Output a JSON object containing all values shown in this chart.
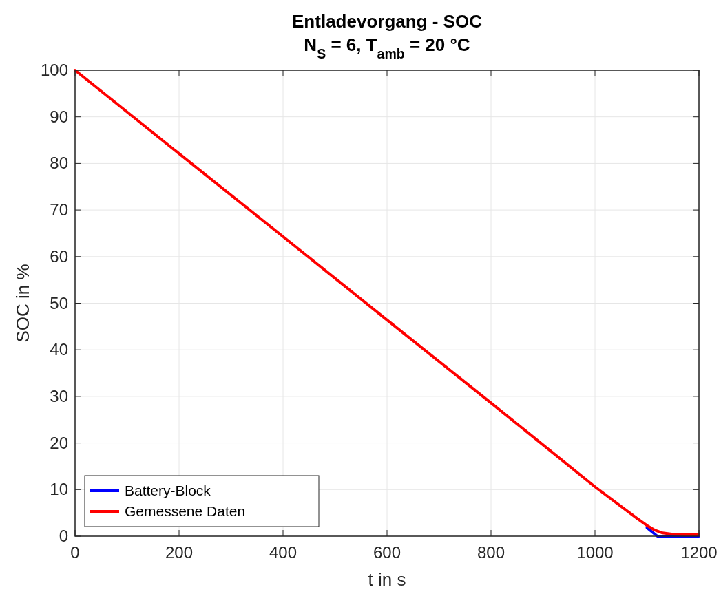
{
  "chart_data": {
    "type": "line",
    "title": "Entladevorgang - SOC",
    "subtitle": "N$_{S}$ = 6,  T$_{amb}$ = 20 °C",
    "xlabel": "t in s",
    "ylabel": "SOC in %",
    "xlim": [
      0,
      1200
    ],
    "xticks": [
      0,
      200,
      400,
      600,
      800,
      1000,
      1200
    ],
    "ylim": [
      0,
      100
    ],
    "yticks": [
      0,
      10,
      20,
      30,
      40,
      50,
      60,
      70,
      80,
      90,
      100
    ],
    "grid": true,
    "legend": "bottom left",
    "line_style": "solid",
    "series": [
      {
        "name": "Battery-Block",
        "color": "#0000ff",
        "x": [
          1100,
          1120,
          1160,
          1200
        ],
        "values": [
          1.8,
          0,
          0,
          0
        ]
      },
      {
        "name": "Gemessene Daten",
        "color": "#ff0000",
        "x": [
          0,
          200,
          400,
          600,
          800,
          1000,
          1080,
          1100,
          1115,
          1130,
          1150,
          1175,
          1200
        ],
        "values": [
          100,
          82.1,
          64.3,
          46.4,
          28.6,
          10.6,
          3.9,
          2.3,
          1.3,
          0.7,
          0.4,
          0.3,
          0.3
        ]
      }
    ]
  }
}
